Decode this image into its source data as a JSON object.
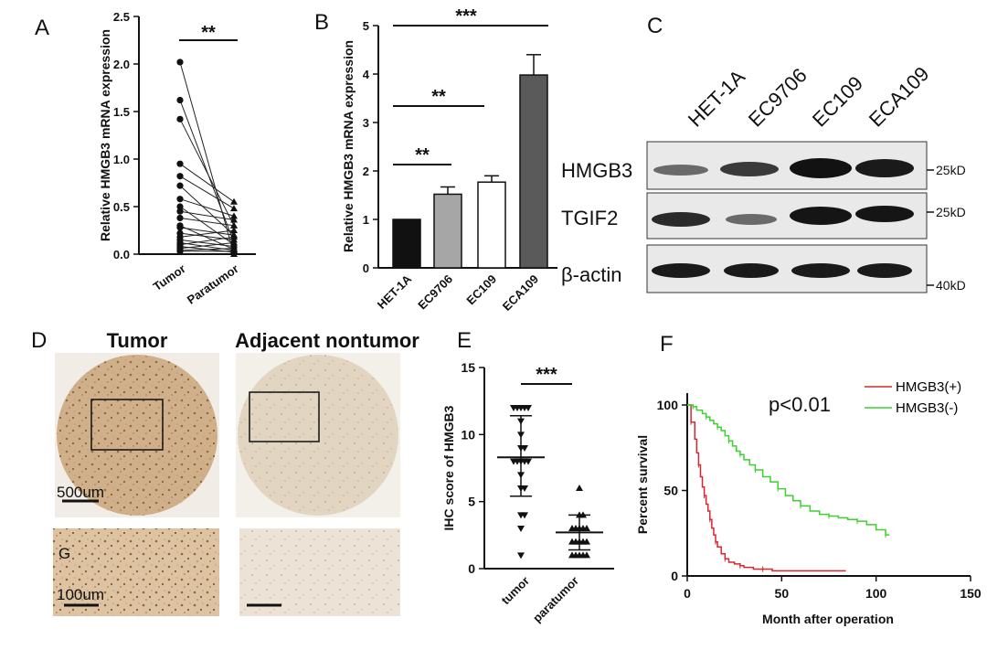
{
  "panels": {
    "A": {
      "letter": "A",
      "ylabel": "Relative HMGB3 mRNA expression",
      "sig": "**",
      "yticks": [
        "0.0",
        "0.5",
        "1.0",
        "1.5",
        "2.0",
        "2.5"
      ],
      "groups": [
        "Tumor",
        "Paratumor"
      ]
    },
    "B": {
      "letter": "B",
      "ylabel": "Relative HMGB3 mRNA expression",
      "yticks": [
        "0",
        "1",
        "2",
        "3",
        "4",
        "5"
      ],
      "sigs": [
        "***",
        "**",
        "**"
      ]
    },
    "C": {
      "letter": "C",
      "lanes": [
        "HET-1A",
        "EC9706",
        "EC109",
        "ECA109"
      ],
      "rows": [
        "HMGB3",
        "TGIF2",
        "β-actin"
      ],
      "markers": [
        "25kD",
        "25kD",
        "40kD"
      ]
    },
    "D": {
      "letter": "D",
      "tumor_title": "Tumor",
      "adjacent_title": "Adjacent nontumor",
      "scale1": "500um",
      "scale2": "100um",
      "sub_letter": "G"
    },
    "E": {
      "letter": "E",
      "ylabel": "IHC score of HMGB3",
      "sig": "***",
      "yticks": [
        "0",
        "5",
        "10",
        "15"
      ],
      "groups": [
        "tumor",
        "paratumor"
      ]
    },
    "F": {
      "letter": "F",
      "ylabel": "Percent survival",
      "xlabel": "Month after operation",
      "pvalue": "p<0.01",
      "legend": [
        "HMGB3(+)",
        "HMGB3(-)"
      ],
      "xticks": [
        "0",
        "50",
        "100",
        "150"
      ],
      "yticks": [
        "0",
        "50",
        "100"
      ]
    }
  },
  "colors": {
    "bar_het": "#111111",
    "bar_ec9706": "#a6a6a6",
    "bar_ec109": "#ffffff",
    "bar_eca109": "#5a5a5a",
    "curve_pos": "#d9262e",
    "curve_neg": "#3bd12f",
    "tissue": "#d9c5ab"
  },
  "chart_data": [
    {
      "type": "scatter",
      "panel": "A",
      "categories": [
        "Tumor",
        "Paratumor"
      ],
      "ylabel": "Relative HMGB3 mRNA expression",
      "ylim": [
        0,
        2.5
      ],
      "pairs": [
        [
          2.02,
          0.0
        ],
        [
          1.62,
          0.12
        ],
        [
          1.42,
          0.3
        ],
        [
          0.95,
          0.55
        ],
        [
          0.82,
          0.48
        ],
        [
          0.72,
          0.2
        ],
        [
          0.58,
          0.4
        ],
        [
          0.5,
          0.1
        ],
        [
          0.45,
          0.36
        ],
        [
          0.38,
          0.3
        ],
        [
          0.3,
          0.05
        ],
        [
          0.28,
          0.2
        ],
        [
          0.22,
          0.15
        ],
        [
          0.18,
          0.25
        ],
        [
          0.15,
          0.08
        ],
        [
          0.12,
          0.04
        ],
        [
          0.1,
          0.18
        ],
        [
          0.08,
          0.02
        ],
        [
          0.06,
          0.12
        ],
        [
          0.04,
          0.06
        ],
        [
          0.03,
          0.03
        ]
      ]
    },
    {
      "type": "bar",
      "panel": "B",
      "categories": [
        "HET-1A",
        "EC9706",
        "EC109",
        "ECA109"
      ],
      "values": [
        1.0,
        1.52,
        1.77,
        3.98
      ],
      "errors": [
        0.0,
        0.15,
        0.13,
        0.42
      ],
      "ylabel": "Relative HMGB3 mRNA expression",
      "ylim": [
        0,
        5
      ]
    },
    {
      "type": "scatter",
      "panel": "E",
      "categories": [
        "tumor",
        "paratumor"
      ],
      "ylabel": "IHC score of HMGB3",
      "ylim": [
        0,
        15
      ],
      "means": [
        8.3,
        2.7
      ],
      "sd_low": [
        5.4,
        1.4
      ],
      "sd_high": [
        11.4,
        4.0
      ],
      "tumor_levels": [
        12,
        12,
        12,
        12,
        12,
        11,
        10,
        9,
        9,
        8,
        8,
        8,
        8,
        8,
        7,
        6,
        6,
        4,
        4,
        3,
        1
      ],
      "paratumor_levels": [
        6,
        4,
        4,
        3,
        3,
        3,
        3,
        3,
        2,
        2,
        2,
        2,
        2,
        1,
        1,
        1,
        1,
        1
      ]
    },
    {
      "type": "line",
      "panel": "F",
      "xlabel": "Month after operation",
      "ylabel": "Percent survival",
      "xlim": [
        0,
        150
      ],
      "ylim": [
        0,
        100
      ],
      "series": [
        {
          "name": "HMGB3(+)",
          "x": [
            0,
            2,
            4,
            5,
            6,
            7,
            8,
            9,
            10,
            11,
            12,
            13,
            14,
            15,
            16,
            18,
            20,
            22,
            25,
            28,
            30,
            35,
            40,
            45,
            84
          ],
          "y": [
            100,
            90,
            80,
            72,
            65,
            58,
            52,
            47,
            42,
            38,
            33,
            28,
            24,
            20,
            17,
            13,
            10,
            8,
            7,
            6,
            5,
            4,
            4,
            3,
            3
          ]
        },
        {
          "name": "HMGB3(-)",
          "x": [
            0,
            3,
            5,
            8,
            10,
            12,
            14,
            16,
            18,
            20,
            22,
            24,
            26,
            28,
            30,
            33,
            36,
            40,
            44,
            48,
            52,
            56,
            60,
            65,
            70,
            75,
            80,
            85,
            90,
            95,
            100,
            105,
            107
          ],
          "y": [
            100,
            99,
            97,
            95,
            93,
            91,
            89,
            87,
            85,
            82,
            79,
            76,
            73,
            71,
            68,
            65,
            62,
            58,
            55,
            51,
            47,
            44,
            41,
            38,
            36,
            35,
            34,
            33,
            32,
            30,
            27,
            24,
            24
          ]
        }
      ]
    }
  ]
}
